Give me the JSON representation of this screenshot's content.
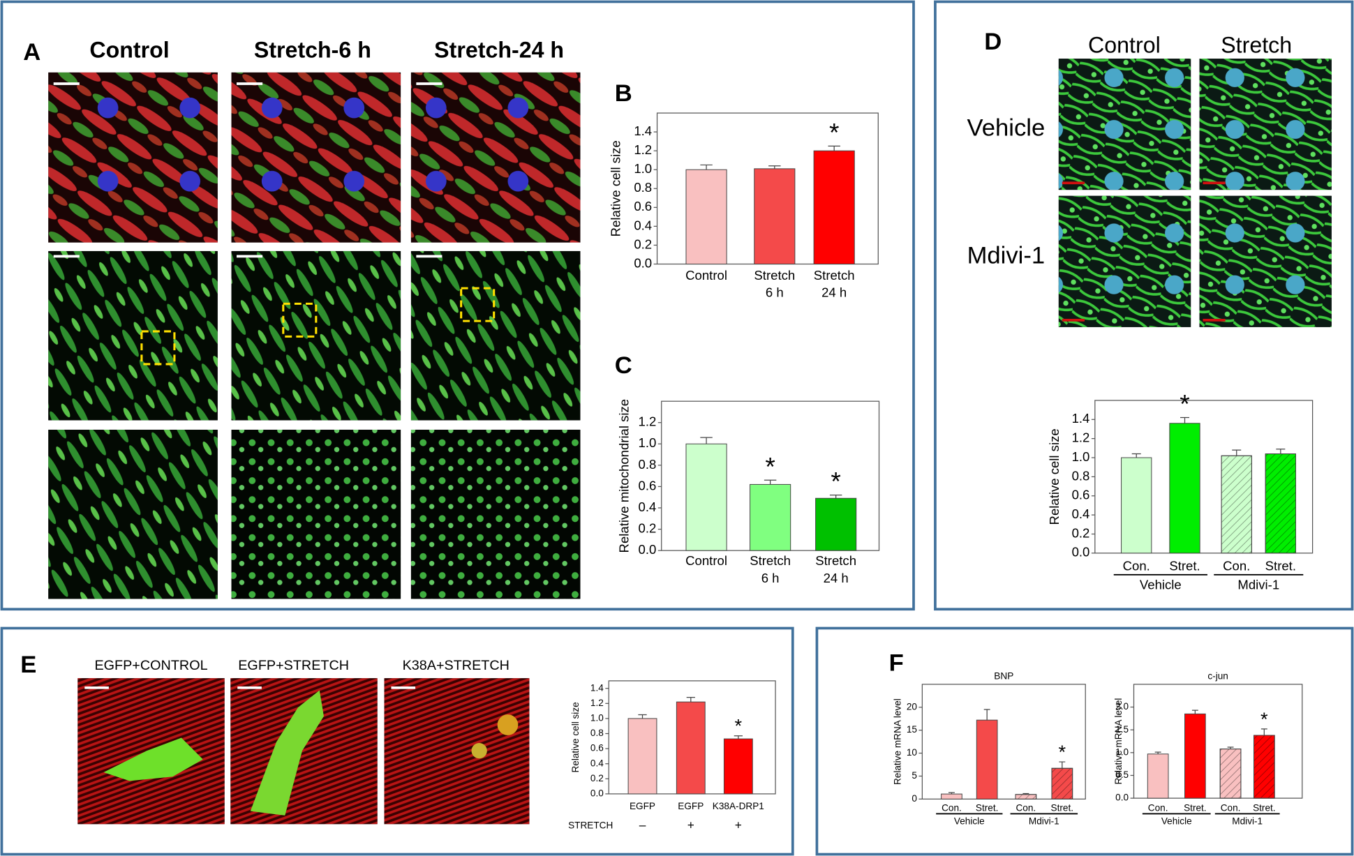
{
  "panel_letters": [
    "A",
    "B",
    "C",
    "D",
    "E",
    "F"
  ],
  "panels": {
    "A": {
      "columns": [
        "Control",
        "Stretch-6 h",
        "Stretch-24 h"
      ]
    },
    "D": {
      "columns": [
        "Control",
        "Stretch"
      ],
      "rows": [
        "Vehicle",
        "Mdivi-1"
      ]
    },
    "E": {
      "columns": [
        "EGFP+CONTROL",
        "EGFP+STRETCH",
        "K38A+STRETCH"
      ]
    }
  },
  "chart_data": [
    {
      "type": "bar",
      "ylabel": "Relative cell size",
      "categories": [
        [
          "Control"
        ],
        [
          "Stretch",
          "6 h"
        ],
        [
          "Stretch",
          "24 h"
        ]
      ],
      "values": [
        1.0,
        1.01,
        1.2
      ],
      "errors": [
        0.05,
        0.03,
        0.05
      ],
      "colors": [
        "#f9c0c0",
        "#f44a4a",
        "#ff0000"
      ],
      "significant": [
        false,
        false,
        true
      ],
      "sig_marker": "*",
      "ylim": [
        0,
        1.6
      ],
      "yticks": [
        {
          "value": 0,
          "label": "0.0"
        },
        0.2,
        0.4,
        0.6,
        0.8,
        {
          "value": 1,
          "label": "1.0"
        },
        1.2,
        1.4
      ]
    },
    {
      "type": "bar",
      "ylabel": "Relative mitochondrial size",
      "categories": [
        [
          "Control"
        ],
        [
          "Stretch",
          "6 h"
        ],
        [
          "Stretch",
          "24 h"
        ]
      ],
      "values": [
        1.0,
        0.62,
        0.49
      ],
      "errors": [
        0.06,
        0.04,
        0.03
      ],
      "colors": [
        "#ccffcc",
        "#80ff80",
        "#00c000"
      ],
      "significant": [
        false,
        true,
        true
      ],
      "sig_marker": "*",
      "ylim": [
        0,
        1.4
      ],
      "yticks": [
        {
          "value": 0,
          "label": "0.0"
        },
        0.2,
        0.4,
        0.6,
        0.8,
        {
          "value": 1,
          "label": "1.0"
        },
        1.2
      ]
    },
    {
      "type": "bar",
      "ylabel": "Relative cell size",
      "categories": [
        "Con.",
        "Stret.",
        "Con.",
        "Stret."
      ],
      "groups": [
        "Vehicle",
        "Mdivi-1"
      ],
      "values": [
        1.0,
        1.36,
        1.02,
        1.04
      ],
      "errors": [
        0.04,
        0.06,
        0.06,
        0.05
      ],
      "colors": [
        "#ccffcc",
        "#00ee00",
        "#ccffcc",
        "#00ee00"
      ],
      "hatched": [
        false,
        false,
        true,
        true
      ],
      "significant": [
        false,
        true,
        false,
        false
      ],
      "sig_marker": "*",
      "ylim": [
        0,
        1.6
      ],
      "yticks": [
        {
          "value": 0,
          "label": "0.0"
        },
        0.2,
        0.4,
        0.6,
        0.8,
        {
          "value": 1,
          "label": "1.0"
        },
        1.2,
        1.4
      ]
    },
    {
      "type": "bar",
      "ylabel": "Relative cell size",
      "categories": [
        "EGFP",
        "EGFP",
        "K38A-DRP1"
      ],
      "condition_label": "STRETCH",
      "conditions": [
        "–",
        "+",
        "+"
      ],
      "values": [
        1.0,
        1.22,
        0.73
      ],
      "errors": [
        0.05,
        0.06,
        0.04
      ],
      "colors": [
        "#f9c0c0",
        "#f44a4a",
        "#ff0000"
      ],
      "significant": [
        false,
        false,
        true
      ],
      "sig_marker": "*",
      "ylim": [
        0,
        1.5
      ],
      "yticks": [
        {
          "value": 0,
          "label": "0.0"
        },
        0.2,
        0.4,
        0.6,
        0.8,
        {
          "value": 1,
          "label": "1.0"
        },
        1.2,
        1.4
      ]
    },
    {
      "type": "bar",
      "title": "BNP",
      "ylabel": "Relative mRNA level",
      "categories": [
        "Con.",
        "Stret.",
        "Con.",
        "Stret."
      ],
      "groups": [
        "Vehicle",
        "Mdivi-1"
      ],
      "values": [
        1.1,
        17.2,
        1.0,
        6.7
      ],
      "errors": [
        0.3,
        2.3,
        0.2,
        1.4
      ],
      "colors": [
        "#f9c0c0",
        "#f44a4a",
        "#f9c0c0",
        "#f44a4a"
      ],
      "hatched": [
        false,
        false,
        true,
        true
      ],
      "significant": [
        false,
        false,
        false,
        true
      ],
      "sig_marker": "*",
      "ylim": [
        0,
        25
      ],
      "yticks": [
        0,
        5,
        10,
        15,
        20
      ]
    },
    {
      "type": "bar",
      "title": "c-jun",
      "ylabel": "Relative mRNA level",
      "categories": [
        "Con.",
        "Stret.",
        "Con.",
        "Stret."
      ],
      "groups": [
        "Vehicle",
        "Mdivi-1"
      ],
      "values": [
        0.97,
        1.85,
        1.08,
        1.38
      ],
      "errors": [
        0.04,
        0.08,
        0.04,
        0.14
      ],
      "colors": [
        "#f9c0c0",
        "#ff0000",
        "#f9c0c0",
        "#ff0000"
      ],
      "hatched": [
        false,
        false,
        true,
        true
      ],
      "significant": [
        false,
        false,
        false,
        true
      ],
      "sig_marker": "*",
      "ylim": [
        0,
        2.5
      ],
      "yticks": [
        {
          "value": 0,
          "label": "0.0"
        },
        0.5,
        {
          "value": 1,
          "label": "1.0"
        },
        1.5,
        {
          "value": 2,
          "label": "2.0"
        }
      ]
    }
  ]
}
